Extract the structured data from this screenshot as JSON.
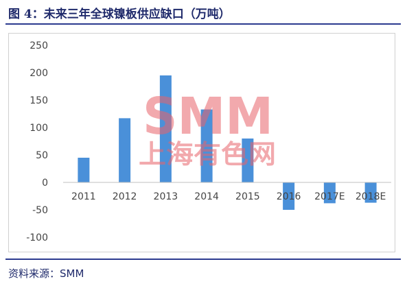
{
  "title": "图 4：未来三年全球镍板供应缺口（万吨）",
  "source": "资料来源：SMM",
  "watermark": {
    "logo": "SMM",
    "text": "上海有色网",
    "color": "#e8636b"
  },
  "colors": {
    "bar": "#4a90d9",
    "rule": "#2b3a8f",
    "frame": "#d0d0d0"
  },
  "chart_data": {
    "type": "bar",
    "categories": [
      "2011",
      "2012",
      "2013",
      "2014",
      "2015",
      "2016",
      "2017E",
      "2018E"
    ],
    "values": [
      45,
      117,
      195,
      133,
      80,
      -50,
      -38,
      -37
    ],
    "ylim": [
      -100,
      250
    ],
    "yticks": [
      250,
      200,
      150,
      100,
      50,
      0,
      -50,
      -100
    ],
    "title": "",
    "xlabel": "",
    "ylabel": ""
  }
}
